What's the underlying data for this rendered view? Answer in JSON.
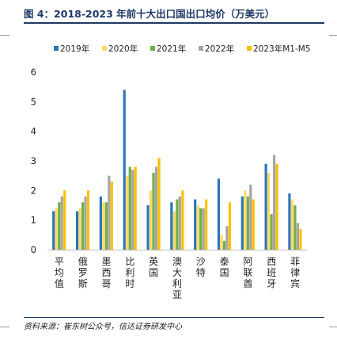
{
  "figure_title": "图 4：2018-2023 年前十大出口国出口均价（万美元）",
  "source": "资料来源：崔东树公众号，信达证券研发中心",
  "colors": {
    "title": "#1f3864",
    "series": [
      "#2e75b6",
      "#ffd966",
      "#70ad47",
      "#a5a5a5",
      "#ffc000"
    ]
  },
  "chart_data": {
    "type": "bar",
    "categories": [
      "平均值",
      "俄罗斯",
      "墨西哥",
      "比利时",
      "英国",
      "澳大利亚",
      "沙特",
      "泰国",
      "阿联酋",
      "西班牙",
      "菲律宾"
    ],
    "series": [
      {
        "name": "2019年",
        "values": [
          1.3,
          1.3,
          1.8,
          5.4,
          1.5,
          1.6,
          1.7,
          2.4,
          1.8,
          2.9,
          1.9
        ]
      },
      {
        "name": "2020年",
        "values": [
          1.4,
          1.4,
          1.6,
          2.5,
          2.0,
          1.3,
          1.5,
          0.5,
          2.0,
          2.6,
          1.7
        ]
      },
      {
        "name": "2021年",
        "values": [
          1.6,
          1.6,
          1.6,
          2.8,
          2.6,
          1.7,
          1.4,
          0.3,
          1.8,
          1.2,
          1.5
        ]
      },
      {
        "name": "2022年",
        "values": [
          1.8,
          1.8,
          2.5,
          2.7,
          2.8,
          1.8,
          1.4,
          0.8,
          2.2,
          3.2,
          0.9
        ]
      },
      {
        "name": "2023年M1-M5",
        "values": [
          2.0,
          2.0,
          2.3,
          2.8,
          3.1,
          2.0,
          1.7,
          1.6,
          1.7,
          2.9,
          0.7
        ]
      }
    ],
    "yticks": [
      0,
      1,
      2,
      3,
      4,
      5,
      6
    ],
    "ylim": [
      0,
      6
    ],
    "legend_position": "top",
    "grid": false
  }
}
